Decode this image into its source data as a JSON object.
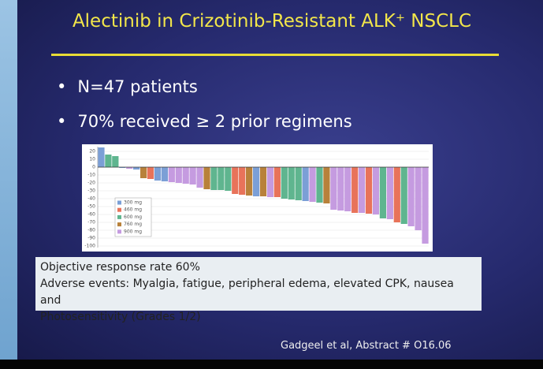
{
  "slide": {
    "title": "Alectinib in Crizotinib-Resistant ALK⁺ NSCLC",
    "bullets": [
      "N=47 patients",
      "70% received ≥ 2 prior regimens"
    ],
    "box_lines": [
      "Objective response rate 60%",
      "Adverse events: Myalgia, fatigue, peripheral edema, elevated CPK, nausea and",
      "Photosensitivity (Grades 1/2)"
    ],
    "citation": "Gadgeel et al, Abstract # O16.06"
  },
  "chart_data": {
    "type": "bar",
    "xlim": [
      0.5,
      47.5
    ],
    "ylim": [
      -102,
      26
    ],
    "yticks": [
      20,
      10,
      0,
      -10,
      -20,
      -30,
      -40,
      -50,
      -60,
      -70,
      -80,
      -90,
      -100
    ],
    "grid": true,
    "series": [
      {
        "name": "300 mg",
        "color": "#7b9fd6",
        "x": [
          1,
          4,
          6,
          9,
          10,
          23,
          30
        ],
        "values": [
          25,
          -1,
          -3,
          -17,
          -18,
          -37,
          -43
        ]
      },
      {
        "name": "460 mg",
        "color": "#e8735a",
        "x": [
          8,
          20,
          21,
          26,
          37,
          39,
          43
        ],
        "values": [
          -15,
          -34,
          -35,
          -38,
          -58,
          -59,
          -70
        ]
      },
      {
        "name": "600 mg",
        "color": "#5fb58f",
        "x": [
          2,
          3,
          17,
          18,
          19,
          27,
          28,
          29,
          32,
          41,
          44
        ],
        "values": [
          16,
          14,
          -29,
          -29,
          -30,
          -40,
          -41,
          -42,
          -45,
          -65,
          -72
        ]
      },
      {
        "name": "760 mg",
        "color": "#b8813a",
        "x": [
          7,
          16,
          22,
          24,
          33
        ],
        "values": [
          -14,
          -28,
          -36,
          -37,
          -46
        ]
      },
      {
        "name": "900 mg",
        "color": "#c59be0",
        "x": [
          5,
          11,
          12,
          13,
          14,
          15,
          25,
          31,
          34,
          35,
          36,
          38,
          40,
          42,
          45,
          46,
          47
        ],
        "values": [
          -2,
          -19,
          -20,
          -21,
          -22,
          -26,
          -38,
          -44,
          -54,
          -55,
          -56,
          -58,
          -60,
          -66,
          -75,
          -80,
          -97
        ]
      }
    ]
  }
}
